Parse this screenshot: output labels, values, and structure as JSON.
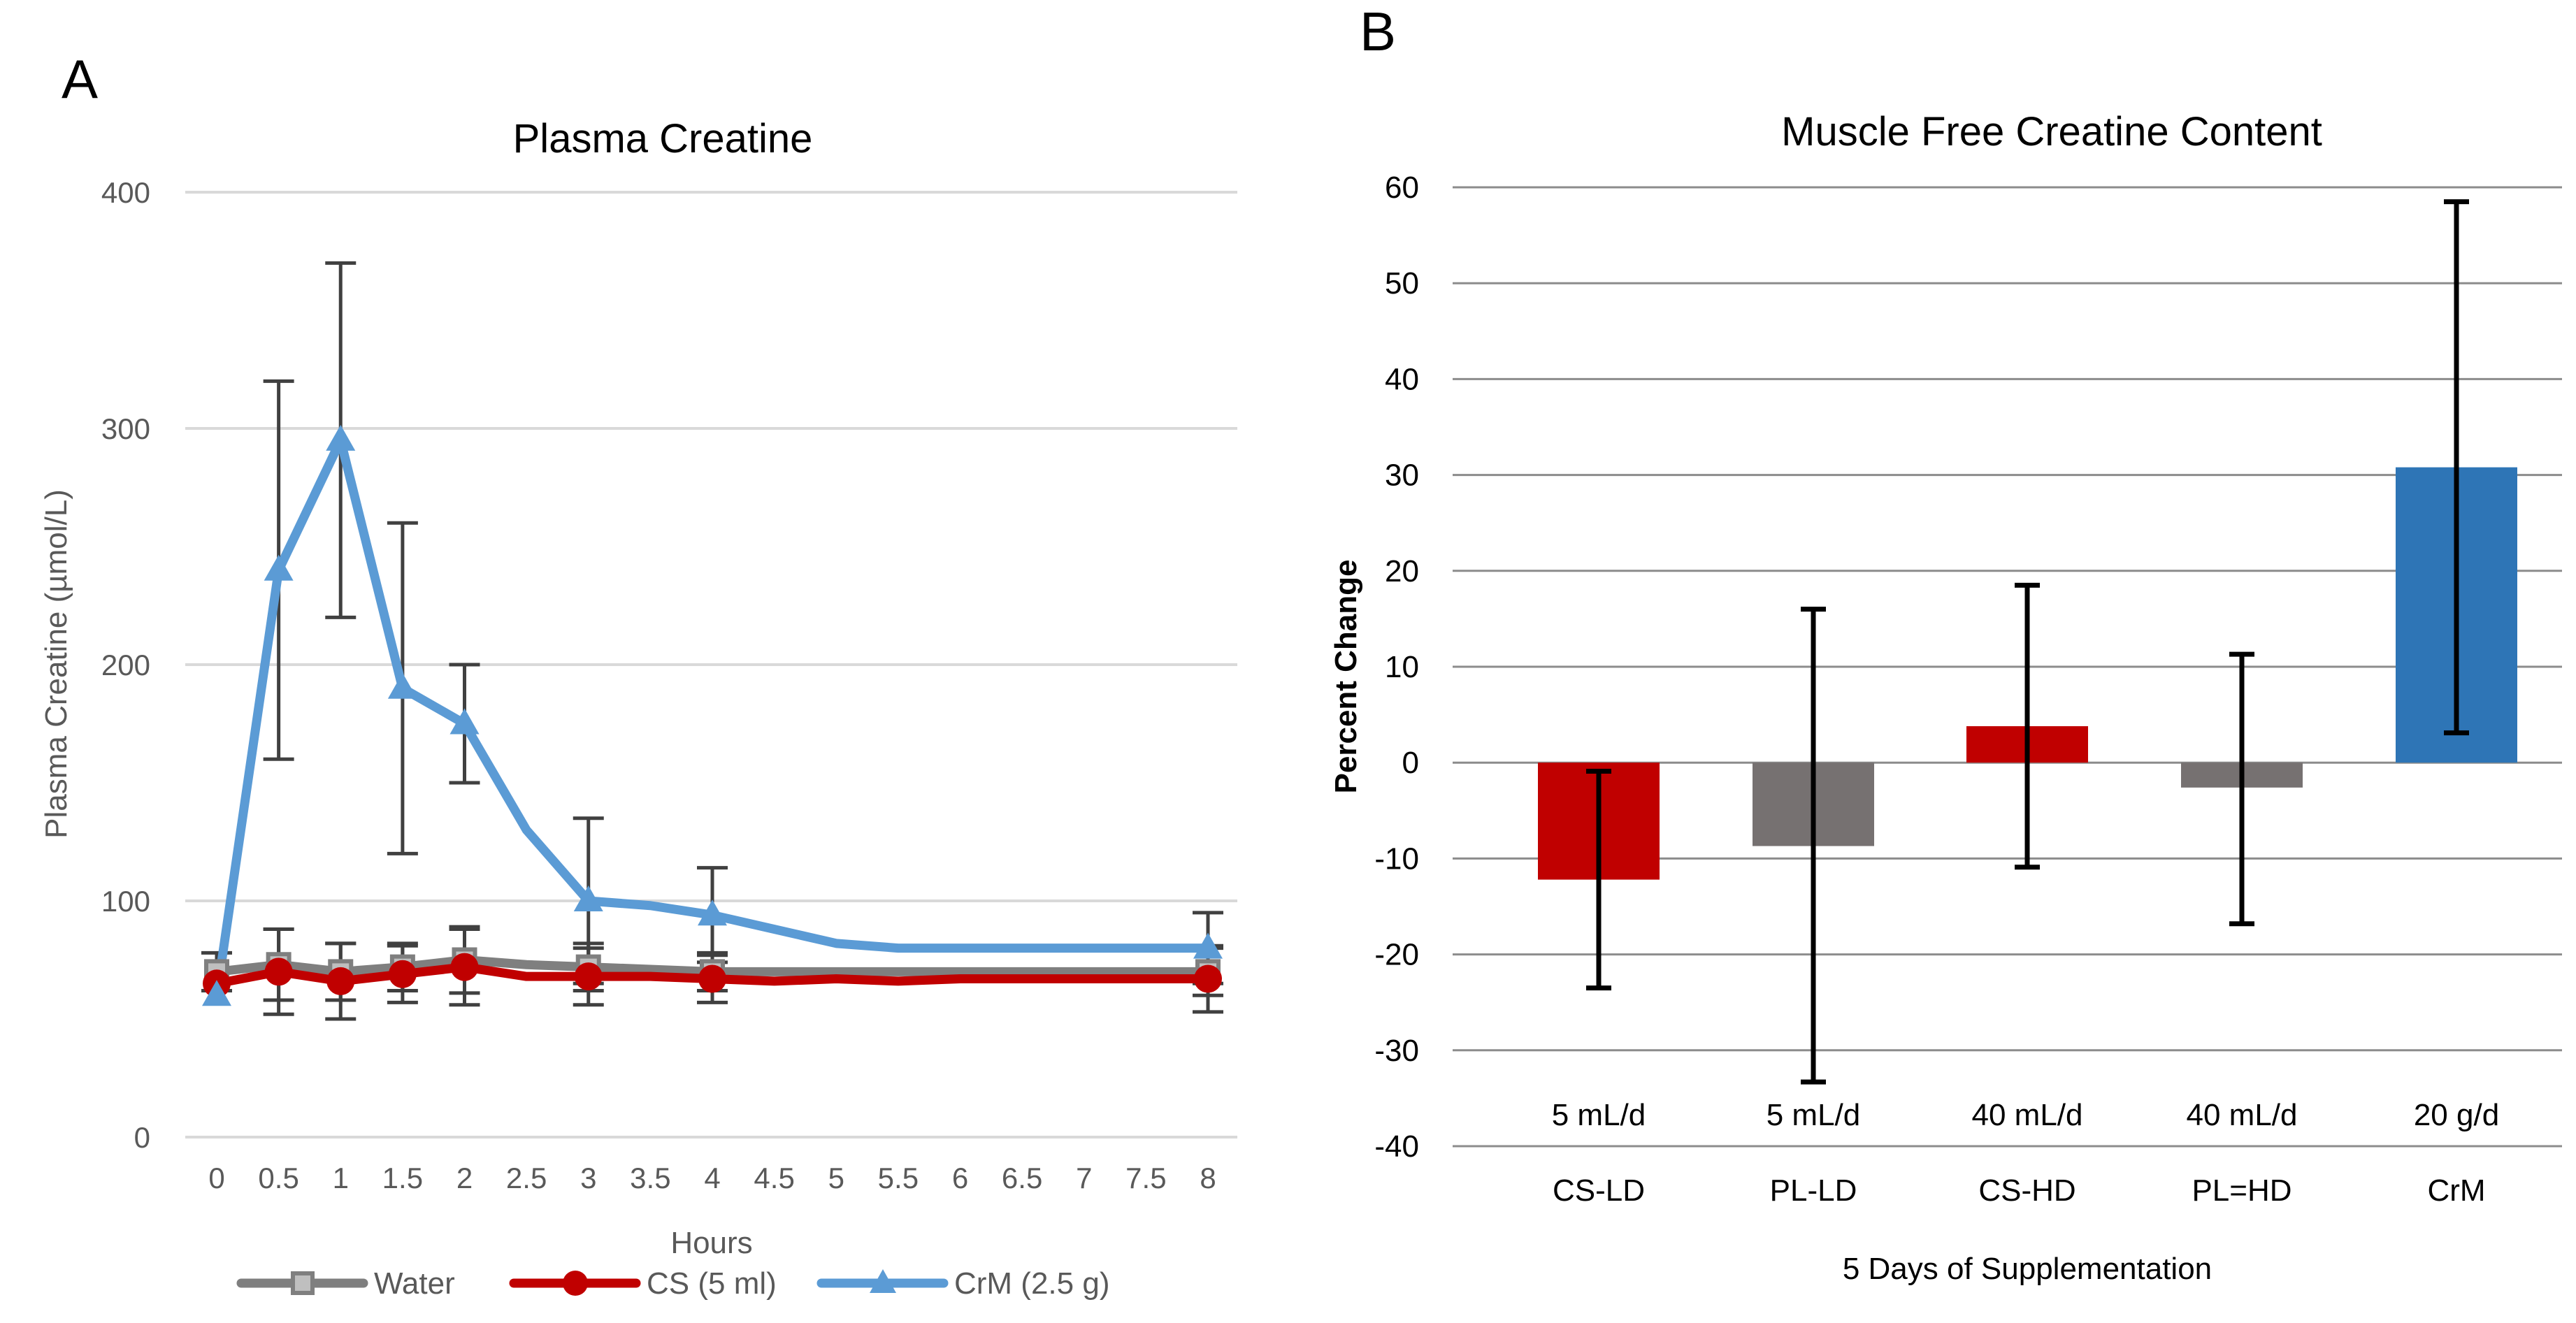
{
  "panels": {
    "a_letter": "A",
    "b_letter": "B"
  },
  "colors": {
    "water": "#7f7f7f",
    "cs": "#c00000",
    "crm": "#5b9bd5",
    "bar_red": "#c00000",
    "bar_gray": "#767171",
    "bar_blue": "#2e75b6",
    "grid": "#d9d9d9",
    "grid_dark": "#8c8c8c",
    "axis_text": "#595959",
    "error": "#404040",
    "error_b": "#000000"
  },
  "chart_data": [
    {
      "type": "line",
      "title": "Plasma Creatine",
      "xlabel": "Hours",
      "ylabel": "Plasma Creatine (µmol/L)",
      "ylim": [
        0,
        400
      ],
      "yticks": [
        0,
        100,
        200,
        300,
        400
      ],
      "xticks": [
        "0",
        "0.5",
        "1",
        "1.5",
        "2",
        "2.5",
        "3",
        "3.5",
        "4",
        "4.5",
        "5",
        "5.5",
        "6",
        "6.5",
        "7",
        "7.5",
        "8"
      ],
      "legend_position": "bottom",
      "series": [
        {
          "name": "Water",
          "marker": "square",
          "color": "#7f7f7f",
          "x": [
            0,
            0.5,
            1,
            1.5,
            2,
            2.5,
            3,
            3.5,
            4,
            4.5,
            5,
            5.5,
            6,
            6.5,
            7,
            7.5,
            8
          ],
          "y": [
            70,
            73,
            70,
            72,
            75,
            73,
            72,
            71,
            70,
            70,
            70,
            70,
            70,
            70,
            70,
            70,
            70
          ],
          "markers_at": [
            0,
            0.5,
            1,
            1.5,
            2,
            3,
            4,
            8
          ],
          "errors": [
            8,
            15,
            12,
            10,
            14,
            null,
            10,
            null,
            8,
            null,
            null,
            null,
            null,
            null,
            null,
            null,
            10
          ]
        },
        {
          "name": "CS (5 ml)",
          "marker": "circle",
          "color": "#c00000",
          "x": [
            0,
            0.5,
            1,
            1.5,
            2,
            2.5,
            3,
            3.5,
            4,
            4.5,
            5,
            5.5,
            6,
            6.5,
            7,
            7.5,
            8
          ],
          "y": [
            65,
            70,
            66,
            69,
            72,
            68,
            68,
            68,
            67,
            66,
            67,
            66,
            67,
            67,
            67,
            67,
            67
          ],
          "markers_at": [
            0,
            0.5,
            1,
            1.5,
            2,
            3,
            4,
            8
          ],
          "errors": [
            null,
            18,
            16,
            12,
            16,
            null,
            12,
            null,
            10,
            null,
            null,
            null,
            null,
            null,
            null,
            null,
            14
          ]
        },
        {
          "name": "CrM (2.5 g)",
          "marker": "triangle",
          "color": "#5b9bd5",
          "x": [
            0,
            0.5,
            1,
            1.5,
            2,
            2.5,
            3,
            3.5,
            4,
            4.5,
            5,
            5.5,
            6,
            6.5,
            7,
            7.5,
            8
          ],
          "y": [
            60,
            240,
            295,
            190,
            175,
            130,
            100,
            98,
            94,
            88,
            82,
            80,
            80,
            80,
            80,
            80,
            80
          ],
          "markers_at": [
            0,
            0.5,
            1,
            1.5,
            2,
            3,
            4,
            8
          ],
          "errors": [
            null,
            80,
            75,
            70,
            25,
            null,
            35,
            null,
            20,
            null,
            null,
            null,
            null,
            null,
            null,
            null,
            15
          ]
        }
      ]
    },
    {
      "type": "bar",
      "title": "Muscle Free Creatine Content",
      "xlabel": "5 Days of Supplementation",
      "ylabel": "Percent Change",
      "ylim": [
        -40,
        60
      ],
      "yticks": [
        -40,
        -30,
        -20,
        -10,
        0,
        10,
        20,
        30,
        40,
        50,
        60
      ],
      "categories": [
        "CS-LD",
        "PL-LD",
        "CS-HD",
        "PL=HD",
        "CrM"
      ],
      "doses": [
        "5 mL/d",
        "5 mL/d",
        "40 mL/d",
        "40 mL/d",
        "20 g/d"
      ],
      "values": [
        -12.2,
        -8.7,
        3.8,
        -2.6,
        30.8
      ],
      "error_low": [
        -23.5,
        -33.3,
        -10.9,
        -16.8,
        3.1
      ],
      "error_high": [
        -0.9,
        16.0,
        18.5,
        11.3,
        58.5
      ],
      "bar_colors": [
        "#c00000",
        "#767171",
        "#c00000",
        "#767171",
        "#2e75b6"
      ]
    }
  ]
}
